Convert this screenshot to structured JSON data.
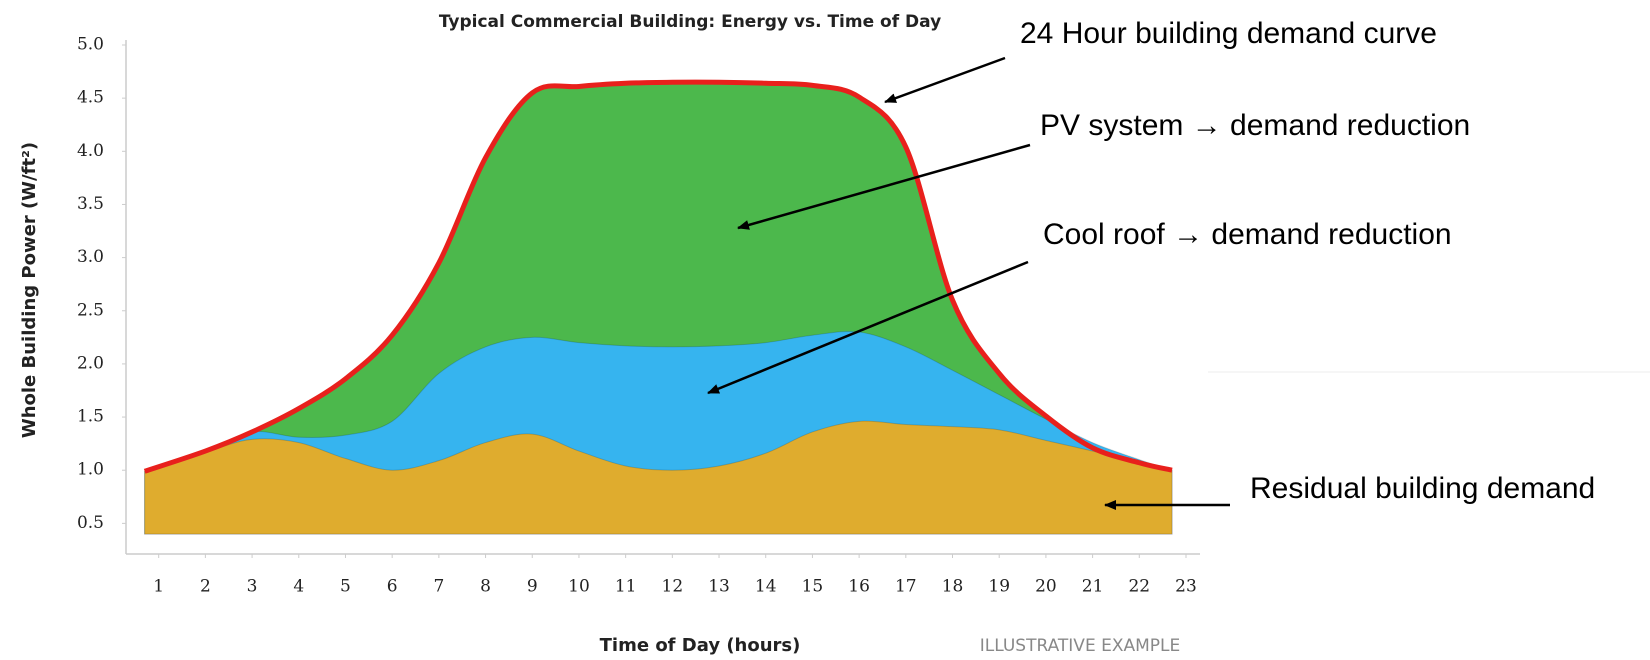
{
  "chart_data": {
    "type": "area",
    "title": "Typical Commercial Building: Energy vs. Time of Day",
    "x_label": "Time of Day (hours)",
    "y_label": "Whole Building Power (W/ft²)",
    "footnote": "ILLUSTRATIVE EXAMPLE",
    "x": [
      0.7,
      2,
      3,
      4,
      5,
      6,
      7,
      8,
      9,
      10,
      11,
      12,
      13,
      14,
      15,
      16,
      17,
      18,
      19,
      20,
      21,
      22,
      22.7
    ],
    "series": [
      {
        "color": "#4cb84c",
        "stroke": "#e8201c",
        "values": [
          0.99,
          1.18,
          1.36,
          1.58,
          1.86,
          2.27,
          2.95,
          3.94,
          4.55,
          4.61,
          4.64,
          4.65,
          4.65,
          4.64,
          4.62,
          4.51,
          4.04,
          2.6,
          1.91,
          1.51,
          1.21,
          1.07,
          1.0
        ]
      },
      {
        "color": "#36b4ef",
        "values": [
          0.99,
          1.18,
          1.36,
          1.31,
          1.33,
          1.46,
          1.91,
          2.16,
          2.25,
          2.2,
          2.17,
          2.16,
          2.17,
          2.2,
          2.27,
          2.3,
          2.16,
          1.94,
          1.71,
          1.48,
          1.26,
          1.1,
          1.0
        ]
      },
      {
        "color": "#dfac2e",
        "values": [
          0.99,
          1.17,
          1.29,
          1.26,
          1.11,
          1.0,
          1.09,
          1.26,
          1.34,
          1.18,
          1.04,
          1.0,
          1.04,
          1.16,
          1.36,
          1.46,
          1.43,
          1.41,
          1.38,
          1.28,
          1.18,
          1.07,
          1.0
        ]
      }
    ],
    "xlim": [
      0.3,
      23.3
    ],
    "xticks": [
      1,
      2,
      3,
      4,
      5,
      6,
      7,
      8,
      9,
      10,
      11,
      12,
      13,
      14,
      15,
      16,
      17,
      18,
      19,
      20,
      21,
      22,
      23
    ],
    "ylim": [
      0.4,
      5.0
    ],
    "yticks": [
      {
        "value": 0.5,
        "label": "0.5"
      },
      {
        "value": 1,
        "label": "1.0"
      },
      {
        "value": 1.5,
        "label": "1.5"
      },
      {
        "value": 2,
        "label": "2.0"
      },
      {
        "value": 2.5,
        "label": "2.5"
      },
      {
        "value": 3,
        "label": "3.0"
      },
      {
        "value": 3.5,
        "label": "3.5"
      },
      {
        "value": 4,
        "label": "4.0"
      },
      {
        "value": 4.5,
        "label": "4.5"
      },
      {
        "value": 5,
        "label": "5.0"
      }
    ],
    "annotations": [
      "24 Hour building demand curve",
      "PV system → demand reduction",
      "Cool roof → demand reduction",
      "Residual building demand"
    ]
  }
}
